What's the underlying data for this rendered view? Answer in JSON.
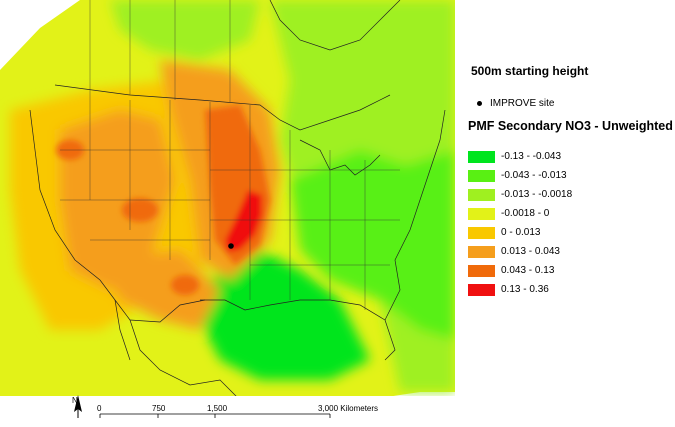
{
  "legend": {
    "height_title": "500m starting height",
    "site_label": "IMPROVE site",
    "title": "PMF Secondary NO3 - Unweighted",
    "classes": [
      {
        "label": "-0.13 - -0.043",
        "color": "#00e51e"
      },
      {
        "label": "-0.043 - -0.013",
        "color": "#59f013"
      },
      {
        "label": "-0.013 - -0.0018",
        "color": "#9ff020"
      },
      {
        "label": "-0.0018 - 0",
        "color": "#e2f218"
      },
      {
        "label": "0 - 0.013",
        "color": "#f9c800"
      },
      {
        "label": "0.013 - 0.043",
        "color": "#f59e1c"
      },
      {
        "label": "0.043 - 0.13",
        "color": "#f06a0a"
      },
      {
        "label": "0.13 - 0.36",
        "color": "#f01010"
      }
    ]
  },
  "scale": {
    "ticks": [
      "0",
      "750",
      "1,500",
      "3,000 Kilometers"
    ],
    "north": "N"
  }
}
